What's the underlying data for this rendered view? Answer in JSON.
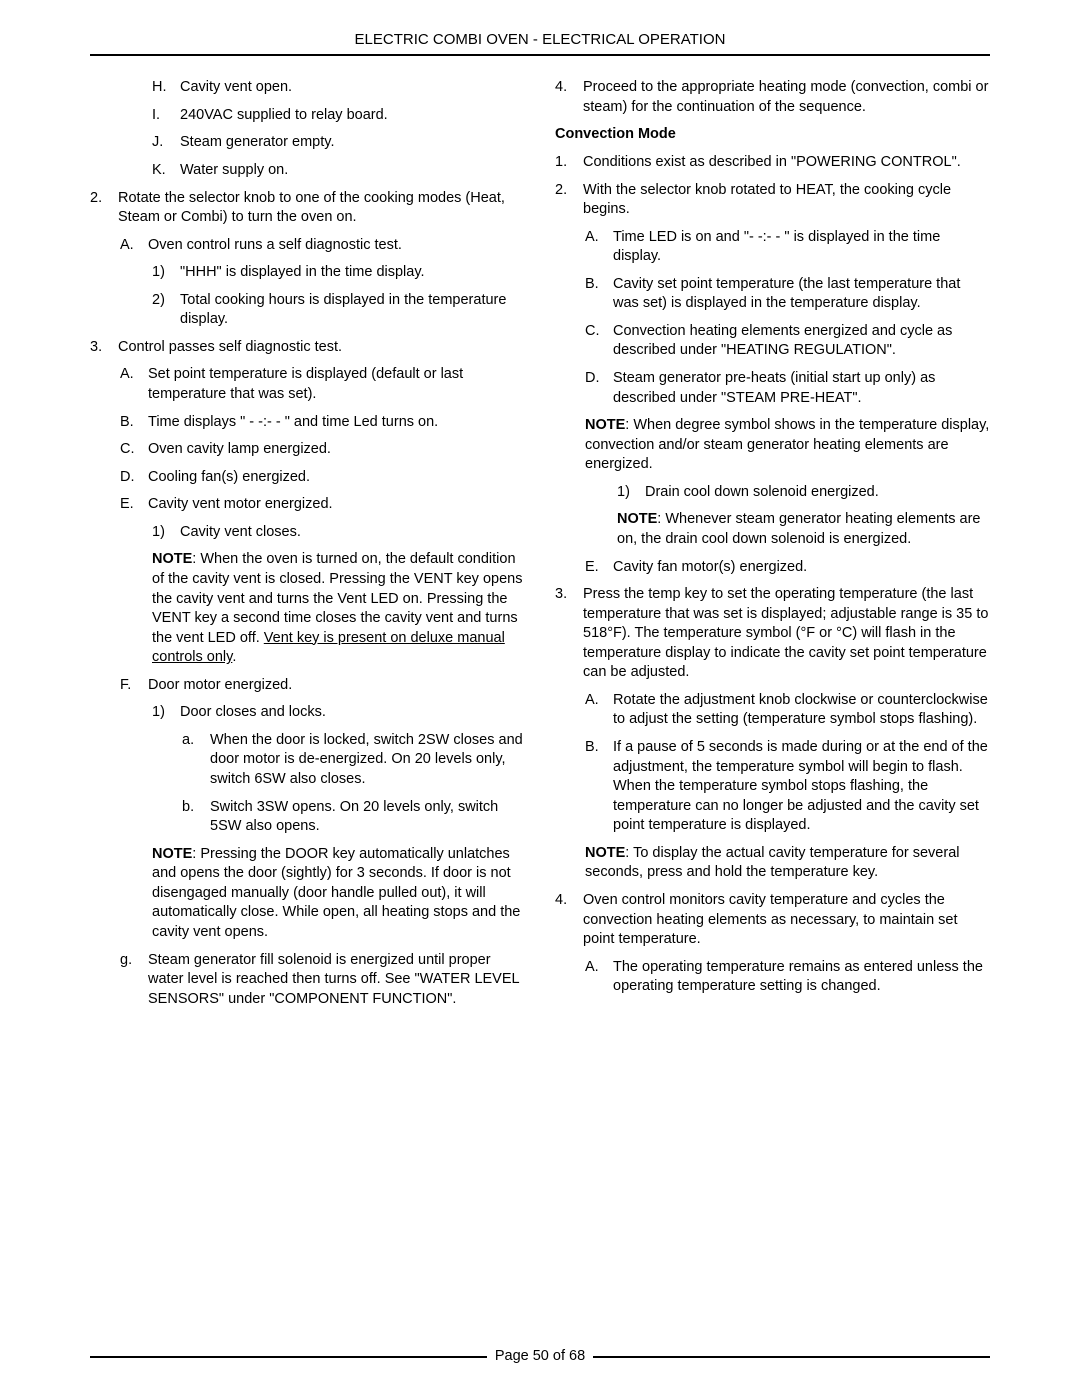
{
  "header": {
    "title": "ELECTRIC COMBI OVEN - ELECTRICAL OPERATION"
  },
  "footer": {
    "page_label": "Page 50 of  68"
  },
  "left": {
    "h_marker": "H.",
    "h_text": "Cavity vent open.",
    "i_marker": "I.",
    "i_text": "240VAC supplied to relay board.",
    "j_marker": "J.",
    "j_text": "Steam generator empty.",
    "k_marker": "K.",
    "k_text": "Water supply on.",
    "n2_marker": "2.",
    "n2_text": "Rotate the selector knob to one of the cooking modes (Heat, Steam or Combi) to turn the oven on.",
    "n2a_marker": "A.",
    "n2a_text": "Oven control runs a self diagnostic test.",
    "n2a1_marker": "1)",
    "n2a1_text": "\"HHH\" is displayed in the time display.",
    "n2a2_marker": "2)",
    "n2a2_text": "Total cooking hours is displayed in the temperature display.",
    "n3_marker": "3.",
    "n3_text": "Control passes self diagnostic test.",
    "n3a_marker": "A.",
    "n3a_text": "Set point temperature is displayed (default or last temperature that was set).",
    "n3b_marker": "B.",
    "n3b_text": "Time displays \" - -:- - \" and time Led turns on.",
    "n3c_marker": "C.",
    "n3c_text": "Oven cavity lamp energized.",
    "n3d_marker": "D.",
    "n3d_text": "Cooling fan(s) energized.",
    "n3e_marker": "E.",
    "n3e_text": "Cavity vent motor energized.",
    "n3e1_marker": "1)",
    "n3e1_text": "Cavity vent closes.",
    "n3e_note_bold": "NOTE",
    "n3e_note_a": ": When the oven is turned on, the default condition of the cavity vent is closed. Pressing the VENT key opens the cavity vent and turns the Vent LED on. Pressing the VENT key a second time closes the cavity vent and turns the vent LED off. ",
    "n3e_note_u": "Vent key is present on deluxe manual controls only",
    "n3e_note_b": ".",
    "n3f_marker": "F.",
    "n3f_text": "Door motor energized.",
    "n3f1_marker": "1)",
    "n3f1_text": "Door closes and locks.",
    "n3f1a_marker": "a.",
    "n3f1a_text": "When the door is locked, switch 2SW closes and door motor is de-energized. On 20 levels only, switch 6SW also closes.",
    "n3f1b_marker": "b.",
    "n3f1b_text": "Switch 3SW opens. On 20 levels only, switch 5SW also opens.",
    "n3f_note_bold": "NOTE",
    "n3f_note": ": Pressing the DOOR key automatically unlatches and opens the door (sightly) for 3 seconds. If door is not disengaged manually (door handle pulled out), it will automatically close. While open, all heating stops and the cavity vent opens.",
    "n3g_marker": "g.",
    "n3g_text": "Steam generator fill solenoid is energized until proper water level is reached then turns off. See \"WATER LEVEL SENSORS\" under \"COMPONENT FUNCTION\"."
  },
  "right": {
    "n4_marker": "4.",
    "n4_text": "Proceed to the appropriate heating mode (convection, combi or steam) for the continuation of the sequence.",
    "sub_heading": "Convection Mode",
    "c1_marker": "1.",
    "c1_text": "Conditions exist as described in \"POWERING CONTROL\".",
    "c2_marker": "2.",
    "c2_text": "With the selector knob rotated to HEAT, the cooking cycle begins.",
    "c2a_marker": "A.",
    "c2a_text": "Time LED is on and \"- -:- - \" is displayed in the time display.",
    "c2b_marker": "B.",
    "c2b_text": "Cavity set point temperature (the last temperature that was set) is displayed in the temperature display.",
    "c2c_marker": "C.",
    "c2c_text": "Convection heating elements energized and cycle as described under \"HEATING REGULATION\".",
    "c2d_marker": "D.",
    "c2d_text": "Steam generator pre-heats (initial start up only) as described under \"STEAM PRE-HEAT\".",
    "c2_note1_bold": "NOTE",
    "c2_note1": ": When degree symbol shows in the temperature display, convection and/or steam generator heating elements are energized.",
    "c2d1_marker": "1)",
    "c2d1_text": "Drain cool down solenoid energized.",
    "c2_note2_bold": "NOTE",
    "c2_note2": ": Whenever steam generator heating elements are on, the drain cool down solenoid is energized.",
    "c2e_marker": "E.",
    "c2e_text": "Cavity fan motor(s) energized.",
    "c3_marker": "3.",
    "c3_text": "Press the temp key to set the operating temperature (the last temperature that was set is displayed; adjustable range is 35 to 518°F). The temperature symbol (°F or °C) will flash in the temperature display to indicate the cavity set point temperature can be adjusted.",
    "c3a_marker": "A.",
    "c3a_text": "Rotate the adjustment knob clockwise or counterclockwise to adjust the setting (temperature symbol stops flashing).",
    "c3b_marker": "B.",
    "c3b_text": "If a pause of 5 seconds is made during or at the end of the adjustment, the temperature symbol will begin to flash. When the temperature symbol stops flashing, the temperature can no longer be adjusted and the cavity set point temperature is displayed.",
    "c3_note_bold": "NOTE",
    "c3_note": ": To display the actual cavity temperature for several seconds, press and hold the temperature key.",
    "c4_marker": "4.",
    "c4_text": "Oven control monitors cavity temperature and cycles the convection heating elements as necessary, to maintain set point temperature.",
    "c4a_marker": "A.",
    "c4a_text": "The operating temperature remains as entered unless the operating temperature setting is changed."
  }
}
